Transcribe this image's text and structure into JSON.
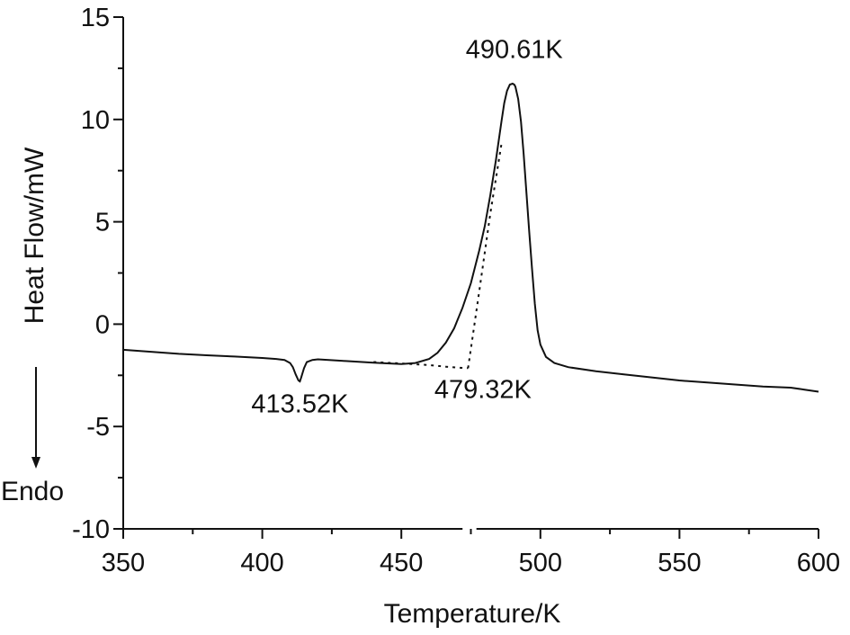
{
  "chart_data": {
    "type": "line",
    "title": "",
    "xlabel": "Temperature/K",
    "ylabel": "Heat Flow/mW",
    "side_label": "Endo",
    "xlim": [
      350,
      600
    ],
    "ylim": [
      -10,
      15
    ],
    "x_ticks": [
      "350",
      "400",
      "450",
      "500",
      "550",
      "600"
    ],
    "y_ticks": [
      "-10",
      "-5",
      "0",
      "5",
      "10",
      "15"
    ],
    "x_axis_break": [
      472,
      477
    ],
    "grid": false,
    "series": [
      {
        "x": [
          350,
          360,
          370,
          380,
          390,
          400,
          405,
          408,
          410,
          411,
          412,
          413,
          413.52,
          414,
          415,
          416,
          418,
          420,
          430,
          440,
          450,
          455,
          460,
          463,
          466,
          469,
          472,
          475,
          478,
          480,
          482,
          484,
          486,
          487,
          488,
          489,
          490,
          490.61,
          491,
          492,
          493,
          494,
          495,
          496,
          497,
          498,
          499,
          500,
          502,
          505,
          510,
          520,
          530,
          540,
          550,
          560,
          570,
          580,
          590,
          595,
          600
        ],
        "y": [
          -1.25,
          -1.35,
          -1.45,
          -1.52,
          -1.58,
          -1.65,
          -1.7,
          -1.75,
          -1.9,
          -2.1,
          -2.45,
          -2.75,
          -2.8,
          -2.6,
          -2.15,
          -1.85,
          -1.75,
          -1.72,
          -1.8,
          -1.88,
          -1.95,
          -1.9,
          -1.7,
          -1.4,
          -0.9,
          -0.2,
          0.8,
          2.0,
          3.6,
          4.8,
          6.3,
          8.0,
          9.9,
          10.8,
          11.4,
          11.7,
          11.75,
          11.7,
          11.6,
          11.0,
          9.9,
          8.3,
          6.4,
          4.5,
          2.7,
          1.0,
          -0.3,
          -1.0,
          -1.6,
          -1.9,
          -2.1,
          -2.3,
          -2.45,
          -2.6,
          -2.75,
          -2.85,
          -2.95,
          -3.05,
          -3.1,
          -3.2,
          -3.3
        ]
      }
    ],
    "baseline_extrapolation": {
      "x": [
        440,
        450,
        460,
        466,
        470,
        474
      ],
      "y": [
        -1.85,
        -1.92,
        -2.0,
        -2.08,
        -2.12,
        -2.15
      ]
    },
    "tangent_extrapolation": {
      "x": [
        474,
        478,
        482,
        486
      ],
      "y": [
        -2.15,
        1.6,
        5.4,
        8.8
      ]
    },
    "annotations": [
      {
        "text": "490.61K",
        "x": 490.61,
        "y": 13.0
      },
      {
        "text": "413.52K",
        "x": 413.52,
        "y": -4.3
      },
      {
        "text": "479.32K",
        "x": 479.32,
        "y": -3.6
      }
    ]
  }
}
